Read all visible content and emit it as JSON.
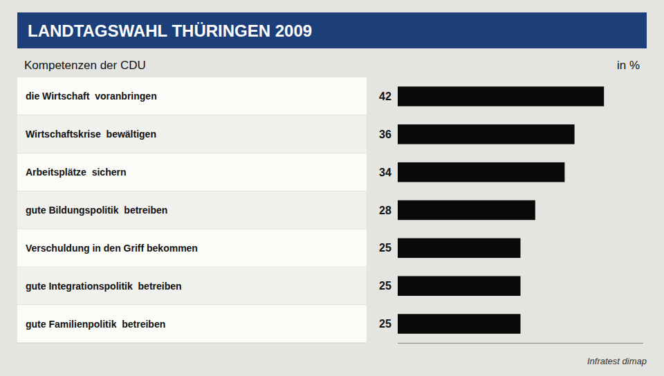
{
  "chart_data": {
    "type": "bar",
    "orientation": "horizontal",
    "title": "LANDTAGSWAHL THÜRINGEN 2009",
    "subtitle": "Kompetenzen der CDU",
    "xlabel": "in %",
    "annotations": [
      "Infratest dimap"
    ],
    "categories": [
      "die Wirtschaft  voranbringen",
      "Wirtschaftskrise  bewältigen",
      "Arbeitsplätze  sichern",
      "gute Bildungspolitik  betreiben",
      "Verschuldung in den Griff bekommen",
      "gute Integrationspolitik  betreiben",
      "gute Familienpolitik  betreiben"
    ],
    "values": [
      42,
      36,
      34,
      28,
      25,
      25,
      25
    ],
    "color": "#0a0a0a",
    "xlim": [
      0,
      50
    ],
    "data_labels": true,
    "tick_labels": "y",
    "grid": false
  }
}
